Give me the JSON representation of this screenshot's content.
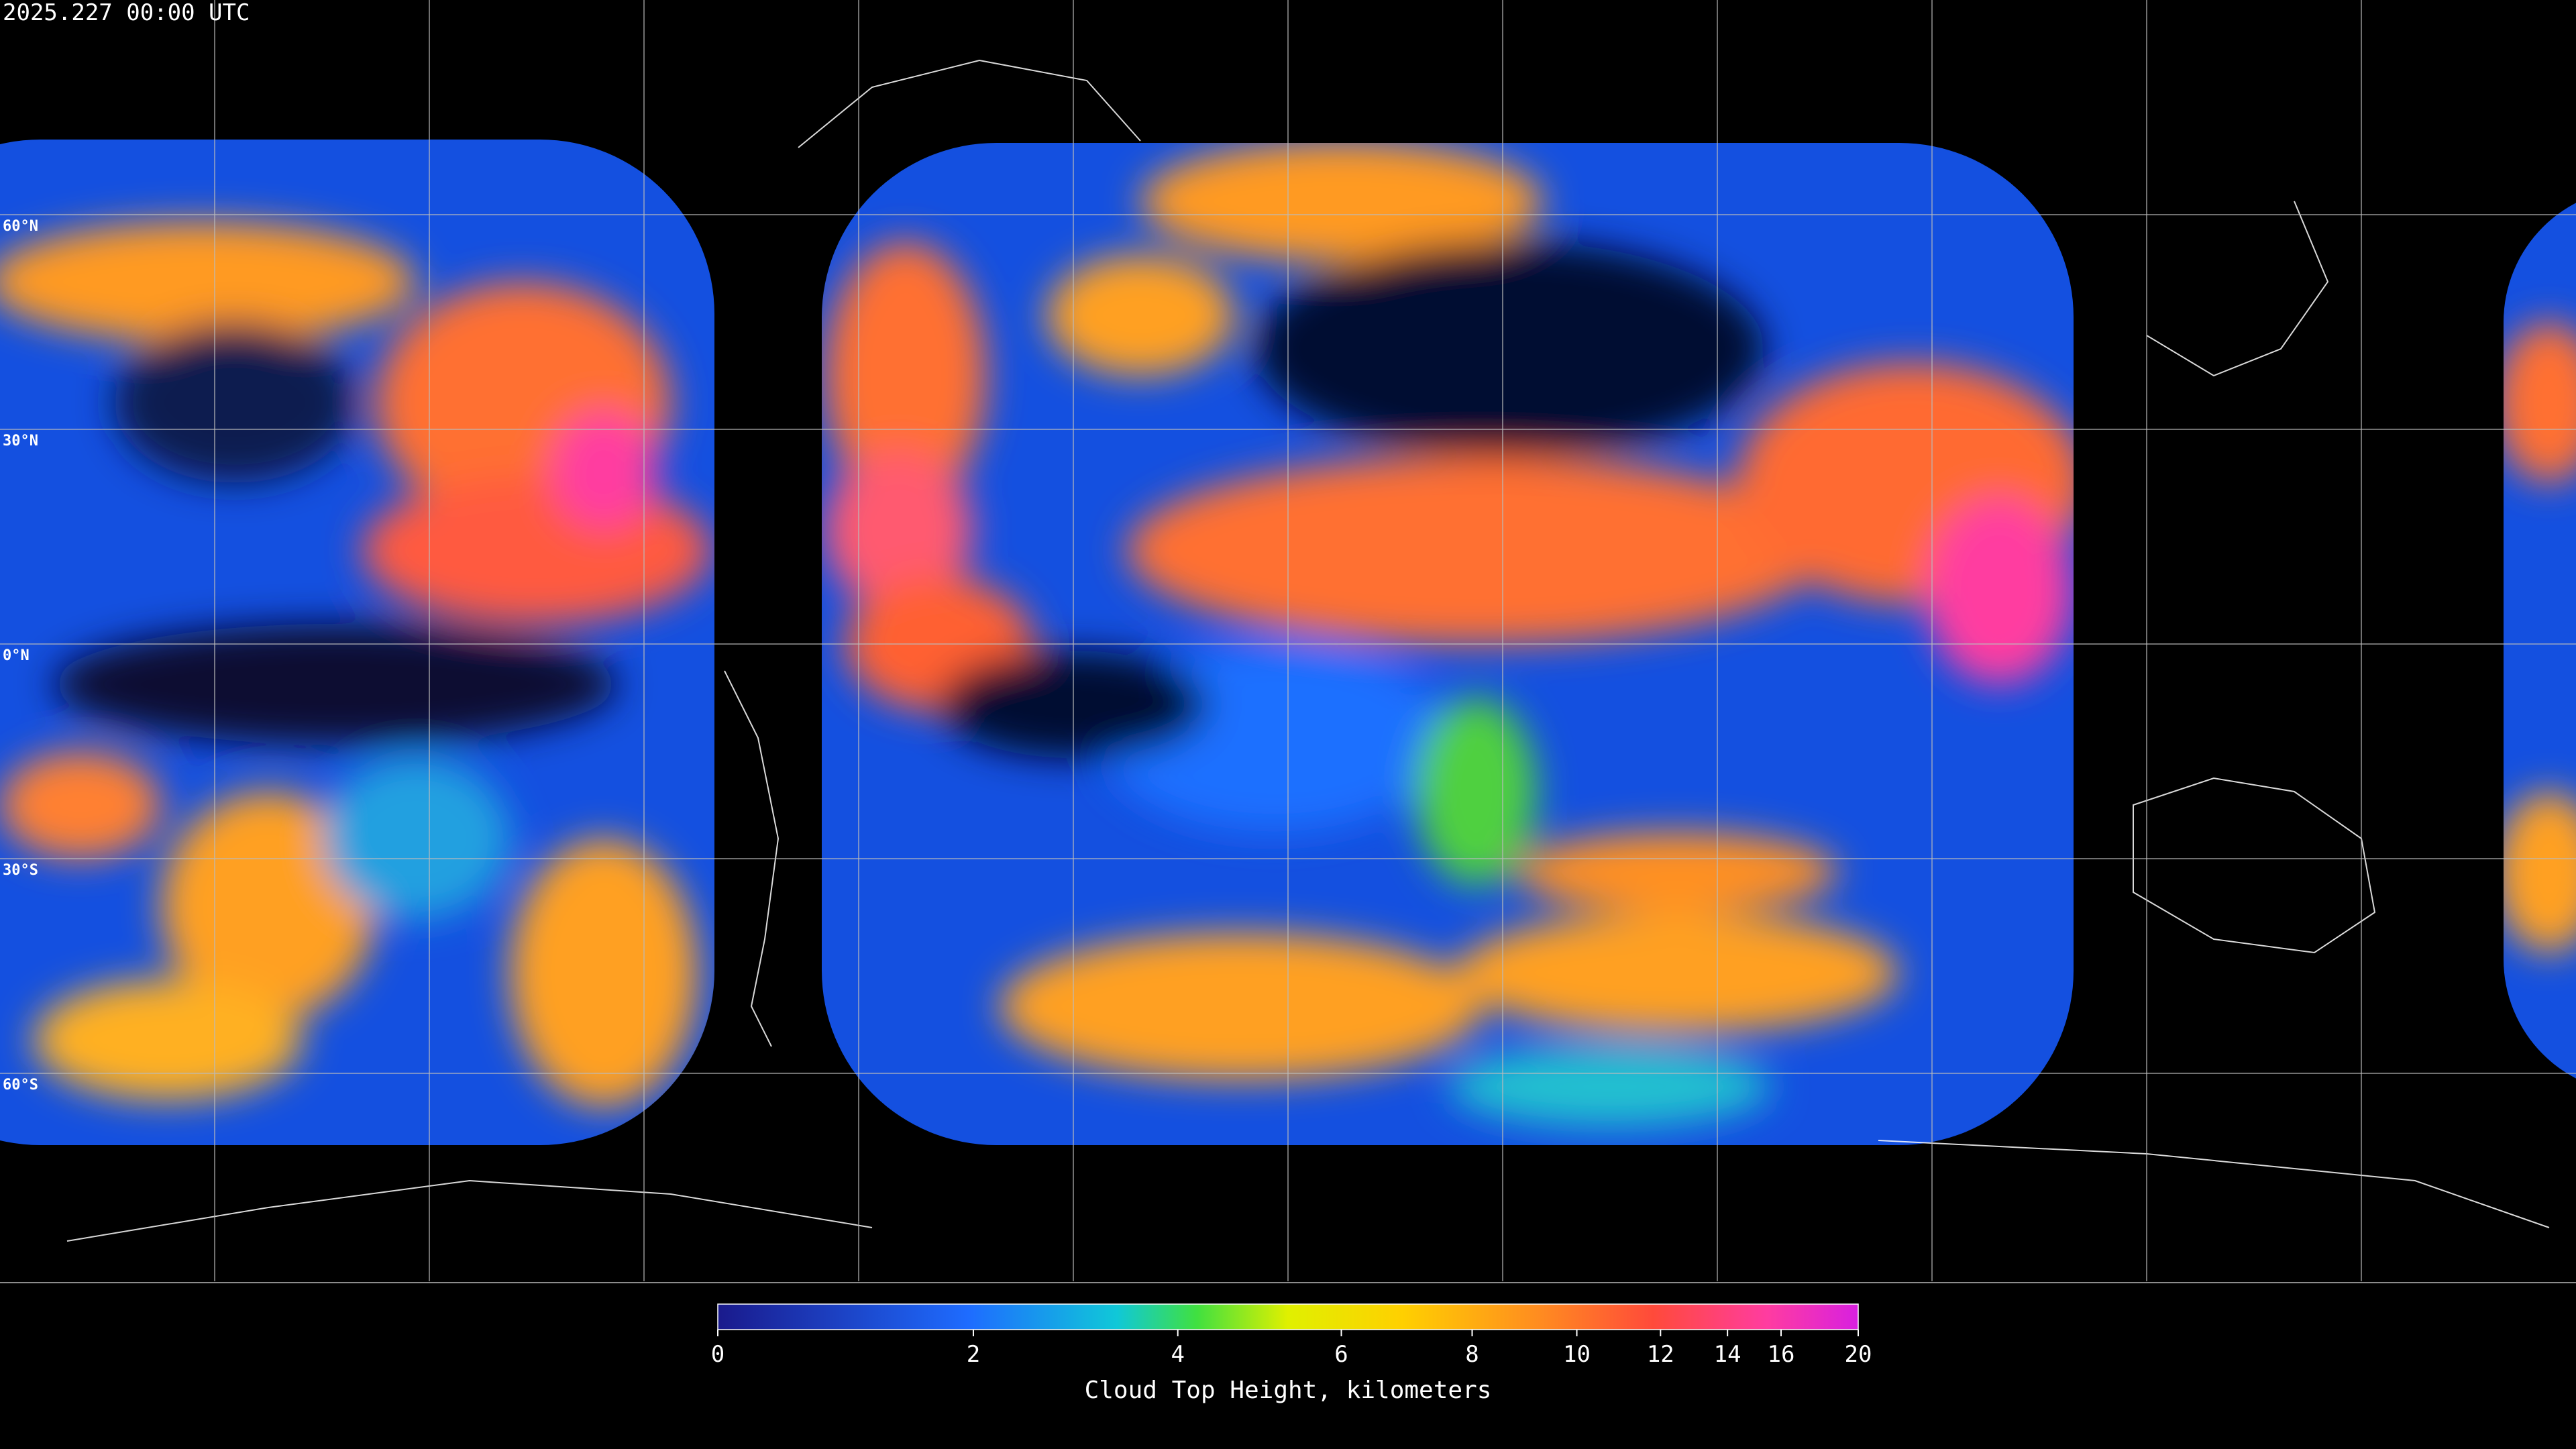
{
  "timestamp": "2025.227 00:00 UTC",
  "latitude_labels": [
    {
      "value": 60,
      "label": "60°N"
    },
    {
      "value": 30,
      "label": "30°N"
    },
    {
      "value": 0,
      "label": "0°N"
    },
    {
      "value": -30,
      "label": "30°S"
    },
    {
      "value": -60,
      "label": "60°S"
    }
  ],
  "colorbar": {
    "label": "Cloud Top Height, kilometers",
    "range": [
      0,
      20
    ],
    "ticks": [
      0,
      2,
      4,
      6,
      8,
      10,
      12,
      14,
      16,
      20
    ]
  }
}
